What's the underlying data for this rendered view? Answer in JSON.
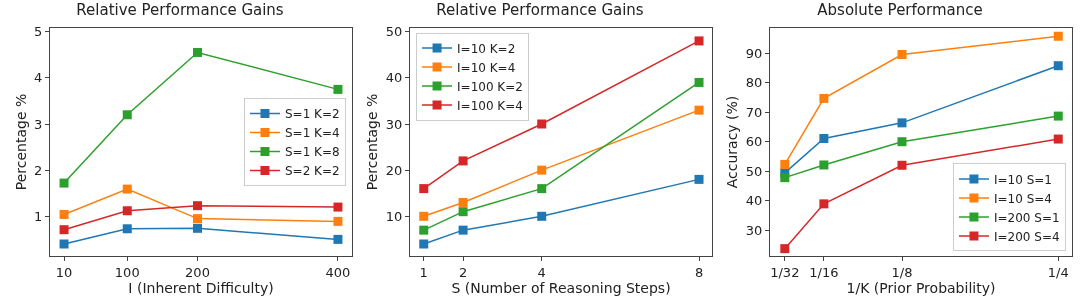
{
  "chart_data": [
    {
      "type": "line",
      "title": "Relative Performance Gains",
      "xlabel": "I (Inherent Difficulty)",
      "ylabel": "Percentage %",
      "x": [
        10,
        100,
        200,
        400
      ],
      "xlim": [
        -10,
        420
      ],
      "xticks": [
        10,
        100,
        200,
        400
      ],
      "ylim": [
        0.14,
        5.08
      ],
      "yticks": [
        1,
        2,
        3,
        4,
        5
      ],
      "grid": false,
      "legend": "right",
      "marker": "square",
      "line_style": "solid",
      "series": [
        {
          "name": "S=1 K=2",
          "color": "#1f77b4",
          "values": [
            0.4,
            0.73,
            0.74,
            0.5
          ]
        },
        {
          "name": "S=1 K=4",
          "color": "#ff7f0e",
          "values": [
            1.04,
            1.59,
            0.95,
            0.89
          ]
        },
        {
          "name": "S=1 K=8",
          "color": "#2ca02c",
          "values": [
            1.72,
            3.2,
            4.55,
            3.75
          ]
        },
        {
          "name": "S=2 K=2",
          "color": "#d62728",
          "values": [
            0.71,
            1.12,
            1.23,
            1.2
          ]
        }
      ]
    },
    {
      "type": "line",
      "title": "Relative Performance Gains",
      "xlabel": "S (Number of Reasoning Steps)",
      "ylabel": "Percentage %",
      "x": [
        1,
        2,
        4,
        8
      ],
      "xlim": [
        0.65,
        8.33
      ],
      "xticks": [
        1,
        2,
        4,
        8
      ],
      "ylim": [
        1.4,
        50.8
      ],
      "yticks": [
        10,
        20,
        30,
        40,
        50
      ],
      "grid": false,
      "legend": "top left",
      "marker": "square",
      "line_style": "solid",
      "series": [
        {
          "name": "I=10 K=2",
          "color": "#1f77b4",
          "values": [
            4,
            7,
            10,
            18
          ]
        },
        {
          "name": "I=10 K=4",
          "color": "#ff7f0e",
          "values": [
            10,
            13,
            20,
            33
          ]
        },
        {
          "name": "I=100 K=2",
          "color": "#2ca02c",
          "values": [
            7,
            11,
            16,
            39
          ]
        },
        {
          "name": "I=100 K=4",
          "color": "#d62728",
          "values": [
            16,
            22,
            30,
            48
          ]
        }
      ]
    },
    {
      "type": "line",
      "title": "Absolute Performance",
      "xlabel": "1/K (Prior Probability)",
      "ylabel": "Accuracy (%)",
      "x": [
        0.03125,
        0.0625,
        0.125,
        0.25
      ],
      "xlim": [
        0.0194,
        0.261
      ],
      "xticks": [
        {
          "value": 0.03125,
          "label": "1/32"
        },
        {
          "value": 0.0625,
          "label": "1/16"
        },
        {
          "value": 0.125,
          "label": "1/8"
        },
        {
          "value": 0.25,
          "label": "1/4"
        }
      ],
      "ylim": [
        21.2,
        98.6
      ],
      "yticks": [
        30,
        40,
        50,
        60,
        70,
        80,
        90
      ],
      "grid": false,
      "legend": "bottom right",
      "marker": "square",
      "line_style": "solid",
      "series": [
        {
          "name": "I=10 S=1",
          "color": "#1f77b4",
          "values": [
            49.4,
            61.1,
            66.4,
            85.8
          ]
        },
        {
          "name": "I=10 S=4",
          "color": "#ff7f0e",
          "values": [
            52.3,
            74.7,
            89.6,
            95.8
          ]
        },
        {
          "name": "I=200 S=1",
          "color": "#2ca02c",
          "values": [
            47.8,
            52.1,
            60,
            68.7
          ]
        },
        {
          "name": "I=200 S=4",
          "color": "#d62728",
          "values": [
            23.7,
            38.9,
            52,
            60.9
          ]
        }
      ]
    }
  ]
}
